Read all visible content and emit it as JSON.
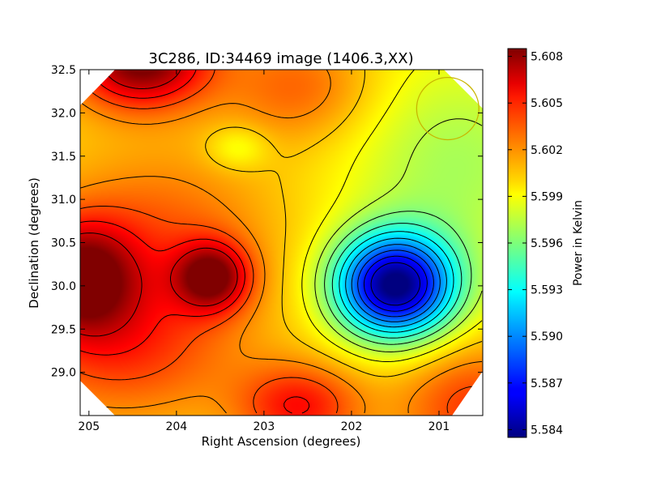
{
  "chart_data": {
    "type": "heatmap",
    "title": "3C286, ID:34469 image (1406.3,XX)",
    "xlabel": "Right Ascension (degrees)",
    "ylabel": "Declination (degrees)",
    "xlim": [
      205.1,
      200.5
    ],
    "ylim": [
      28.5,
      32.5
    ],
    "xticks": [
      205,
      204,
      203,
      202,
      201
    ],
    "yticks": [
      29.0,
      29.5,
      30.0,
      30.5,
      31.0,
      31.5,
      32.0,
      32.5
    ],
    "xtick_labels": [
      "205",
      "204",
      "203",
      "202",
      "201"
    ],
    "ytick_labels": [
      "29.0",
      "29.5",
      "30.0",
      "30.5",
      "31.0",
      "31.5",
      "32.0",
      "32.5"
    ],
    "colorbar": {
      "label": "Power in Kelvin",
      "min": 5.5835,
      "max": 5.6085,
      "ticks": [
        5.584,
        5.587,
        5.59,
        5.593,
        5.596,
        5.599,
        5.602,
        5.605,
        5.608
      ],
      "tick_labels": [
        "5.584",
        "5.587",
        "5.590",
        "5.593",
        "5.596",
        "5.599",
        "5.602",
        "5.605",
        "5.608"
      ],
      "colormap": "jet"
    },
    "background_level": 5.6,
    "features": [
      {
        "kind": "min",
        "ra": 201.5,
        "dec": 30.0,
        "sra": 0.48,
        "sdec": 0.42,
        "amp": -0.0165
      },
      {
        "kind": "min",
        "ra": 200.8,
        "dec": 31.4,
        "sra": 0.9,
        "sdec": 0.9,
        "amp": -0.003
      },
      {
        "kind": "max",
        "ra": 204.4,
        "dec": 32.6,
        "sra": 0.55,
        "sdec": 0.38,
        "amp": 0.009
      },
      {
        "kind": "max",
        "ra": 205.1,
        "dec": 30.1,
        "sra": 0.45,
        "sdec": 0.45,
        "amp": 0.008
      },
      {
        "kind": "max",
        "ra": 203.6,
        "dec": 30.1,
        "sra": 0.3,
        "sdec": 0.28,
        "amp": 0.0075
      },
      {
        "kind": "max",
        "ra": 204.2,
        "dec": 30.6,
        "sra": 0.9,
        "sdec": 0.7,
        "amp": 0.003
      },
      {
        "kind": "max",
        "ra": 204.6,
        "dec": 29.3,
        "sra": 0.9,
        "sdec": 0.6,
        "amp": 0.004
      },
      {
        "kind": "max",
        "ra": 202.6,
        "dec": 28.6,
        "sra": 0.5,
        "sdec": 0.35,
        "amp": 0.005
      },
      {
        "kind": "max",
        "ra": 202.6,
        "dec": 32.3,
        "sra": 0.6,
        "sdec": 0.45,
        "amp": 0.003
      },
      {
        "kind": "max",
        "ra": 200.6,
        "dec": 28.6,
        "sra": 0.6,
        "sdec": 0.5,
        "amp": 0.004
      },
      {
        "kind": "min",
        "ra": 203.3,
        "dec": 31.6,
        "sra": 0.25,
        "sdec": 0.18,
        "amp": -0.002
      }
    ],
    "beam_marker": {
      "ra": 200.9,
      "dec": 32.05,
      "radius_deg": 0.36,
      "color": "#c8b400"
    }
  }
}
